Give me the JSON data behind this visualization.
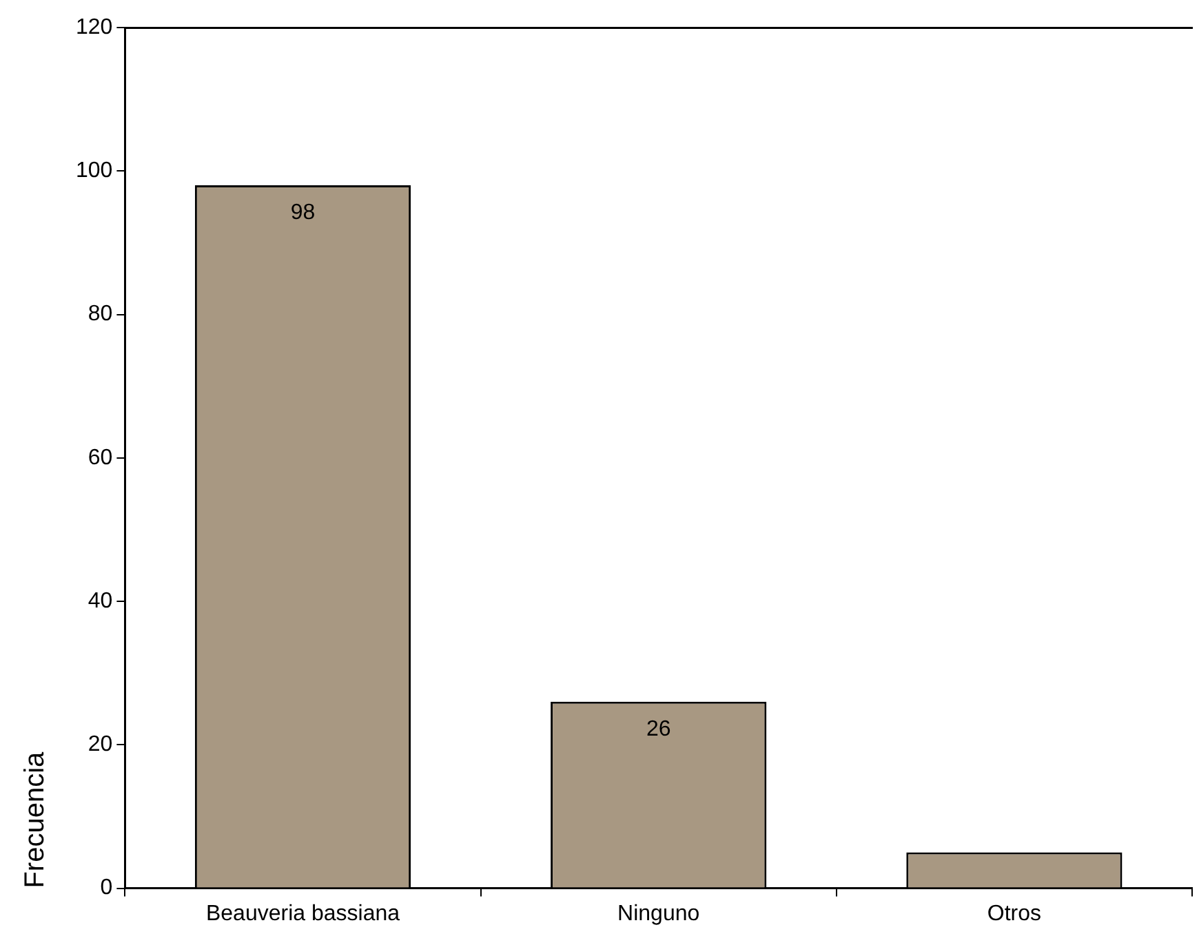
{
  "chart_data": {
    "type": "bar",
    "ylabel": "Frecuencia",
    "categories": [
      "Beauveria bassiana",
      "Ninguno",
      "Otros"
    ],
    "values": [
      98,
      26,
      5
    ],
    "value_labels": [
      "98",
      "26",
      null
    ],
    "color": "#a89882",
    "ylim": [
      0,
      120
    ],
    "yticks": [
      0,
      20,
      40,
      60,
      80,
      100,
      120
    ],
    "grid": false,
    "legend": false
  }
}
